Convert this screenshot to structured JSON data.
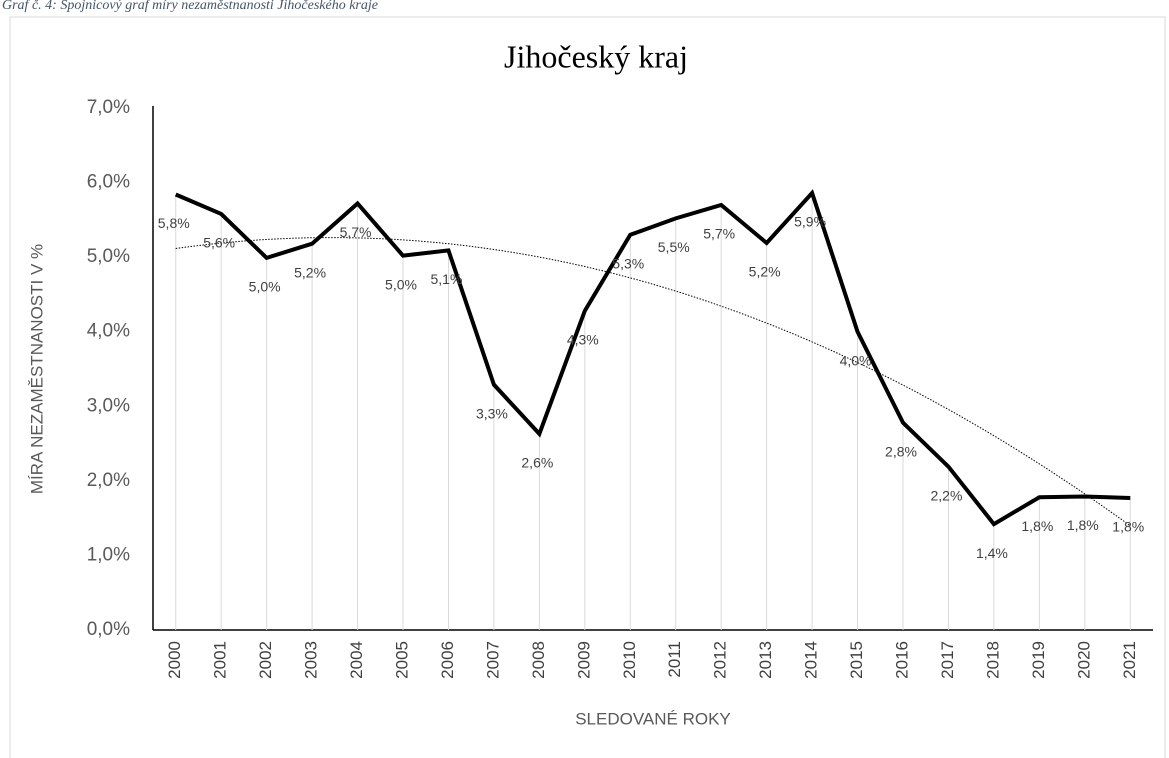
{
  "caption": "Graf č. 4: Spojnicový graf míry nezaměstnanosti Jihočeského kraje",
  "chart_data": {
    "type": "line",
    "title": "Jihočeský kraj",
    "x_label": "SLEDOVANÉ ROKY",
    "y_label": "MÍRA NEZAMĚSTNANOSTI V %",
    "categories": [
      "2000",
      "2001",
      "2002",
      "2003",
      "2004",
      "2005",
      "2006",
      "2007",
      "2008",
      "2009",
      "2010",
      "2011",
      "2012",
      "2013",
      "2014",
      "2015",
      "2016",
      "2017",
      "2018",
      "2019",
      "2020",
      "2021"
    ],
    "series": [
      {
        "name": "Jihočeský kraj",
        "color": "#000000",
        "values": [
          5.84,
          5.58,
          4.99,
          5.18,
          5.72,
          5.02,
          5.09,
          3.29,
          2.63,
          4.28,
          5.3,
          5.52,
          5.7,
          5.19,
          5.86,
          4.0,
          2.78,
          2.19,
          1.42,
          1.78,
          1.79,
          1.77
        ],
        "value_labels": [
          "5,8%",
          "5,6%",
          "5,0%",
          "5,2%",
          "5,7%",
          "5,0%",
          "5,1%",
          "3,3%",
          "2,6%",
          "4,3%",
          "5,3%",
          "5,5%",
          "5,7%",
          "5,2%",
          "5,9%",
          "4,0%",
          "2,8%",
          "2,2%",
          "1,4%",
          "1,8%",
          "1,8%",
          "1,8%"
        ]
      }
    ],
    "ylim": [
      0,
      7
    ],
    "yticks": [
      {
        "value": 0,
        "label": "0,0%"
      },
      {
        "value": 1,
        "label": "1,0%"
      },
      {
        "value": 2,
        "label": "2,0%"
      },
      {
        "value": 3,
        "label": "3,0%"
      },
      {
        "value": 4,
        "label": "4,0%"
      },
      {
        "value": 5,
        "label": "5,0%"
      },
      {
        "value": 6,
        "label": "6,0%"
      },
      {
        "value": 7,
        "label": "7,0%"
      }
    ],
    "grid": false,
    "drop_lines": true,
    "trendline": "polynomial2"
  }
}
